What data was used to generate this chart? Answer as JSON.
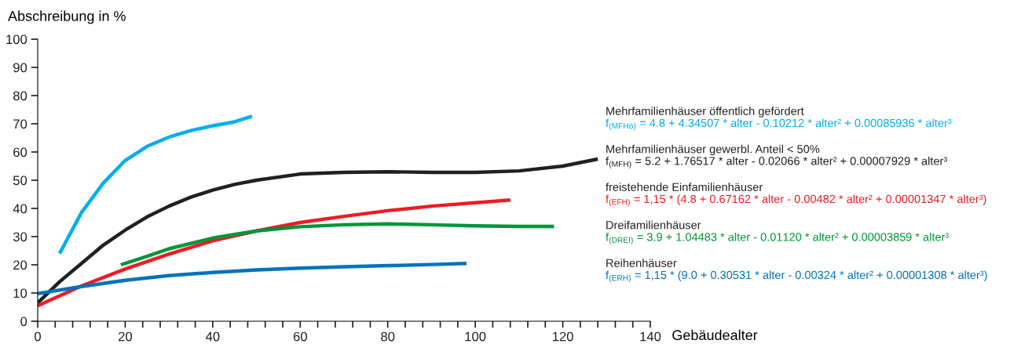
{
  "chart_data": {
    "type": "line",
    "xlabel": "Gebäudealter",
    "ylabel": "Abschreibung in %",
    "xlim": [
      0,
      140
    ],
    "ylim": [
      0,
      100
    ],
    "xticks": [
      0,
      {
        "value": 4,
        "label": null
      },
      {
        "value": 8,
        "label": null
      },
      {
        "value": 12,
        "label": null
      },
      {
        "value": 16,
        "label": null
      },
      20,
      {
        "value": 24,
        "label": null
      },
      {
        "value": 28,
        "label": null
      },
      {
        "value": 32,
        "label": null
      },
      {
        "value": 36,
        "label": null
      },
      40,
      {
        "value": 44,
        "label": null
      },
      {
        "value": 48,
        "label": null
      },
      {
        "value": 52,
        "label": null
      },
      {
        "value": 56,
        "label": null
      },
      60,
      {
        "value": 64,
        "label": null
      },
      {
        "value": 68,
        "label": null
      },
      {
        "value": 72,
        "label": null
      },
      {
        "value": 76,
        "label": null
      },
      80,
      {
        "value": 84,
        "label": null
      },
      {
        "value": 88,
        "label": null
      },
      {
        "value": 92,
        "label": null
      },
      {
        "value": 96,
        "label": null
      },
      100,
      {
        "value": 104,
        "label": null
      },
      {
        "value": 108,
        "label": null
      },
      {
        "value": 112,
        "label": null
      },
      {
        "value": 116,
        "label": null
      },
      120,
      {
        "value": 124,
        "label": null
      },
      {
        "value": 128,
        "label": null
      },
      {
        "value": 132,
        "label": null
      },
      {
        "value": 136,
        "label": null
      },
      140
    ],
    "yticks": [
      0,
      10,
      20,
      30,
      40,
      50,
      60,
      70,
      80,
      90,
      100
    ],
    "grid": false,
    "legend": false,
    "marker": "none",
    "line_style": "solid",
    "series": [
      {
        "name": "Mehrfamilienhäuser öffentlich gefördert",
        "color": "#00aeef",
        "x": [
          5,
          10,
          15,
          20,
          25,
          30,
          35,
          40,
          45,
          49
        ],
        "values": [
          24,
          38.5,
          49,
          57,
          62,
          65.3,
          67.6,
          69.3,
          70.7,
          72.7
        ]
      },
      {
        "name": "Mehrfamilienhäuser gewerbl. Anteil < 50%",
        "color": "#231f20",
        "x": [
          0,
          5,
          10,
          15,
          20,
          25,
          30,
          35,
          40,
          45,
          50,
          60,
          70,
          80,
          90,
          100,
          110,
          120,
          128
        ],
        "values": [
          6.5,
          14,
          20.5,
          27,
          32.3,
          37,
          40.8,
          44,
          46.5,
          48.5,
          50,
          52.2,
          52.8,
          53,
          52.8,
          52.8,
          53.3,
          55,
          57.5
        ]
      },
      {
        "name": "freistehende Einfamilienhäuser",
        "color": "#ed1c24",
        "x": [
          0,
          10,
          20,
          30,
          40,
          50,
          60,
          70,
          80,
          90,
          100,
          108
        ],
        "values": [
          5.5,
          12.5,
          18.5,
          23.8,
          28.5,
          32,
          35,
          37.2,
          39.2,
          40.8,
          42,
          43
        ]
      },
      {
        "name": "Dreifamilienhäuser",
        "color": "#00953a",
        "x": [
          19,
          25,
          30,
          40,
          50,
          60,
          70,
          80,
          90,
          100,
          110,
          118
        ],
        "values": [
          20,
          23,
          25.7,
          29.5,
          32,
          33.5,
          34.2,
          34.5,
          34.2,
          33.8,
          33.6,
          33.6
        ]
      },
      {
        "name": "Reihenhäuser",
        "color": "#0072bc",
        "x": [
          0,
          10,
          20,
          30,
          40,
          50,
          60,
          70,
          80,
          90,
          98
        ],
        "values": [
          9.8,
          12.3,
          14.5,
          16.2,
          17.3,
          18.2,
          18.8,
          19.3,
          19.7,
          20.1,
          20.5
        ]
      }
    ],
    "annotations": [
      "f$_{(MFHö)}$ = 4.8 + 4.34507 * alter - 0.10212 * alter² + 0.00085936 * alter³",
      "f$_{(MFH)}$ = 5.2 + 1.76517 * alter - 0.02066 * alter² + 0.00007929 * alter³",
      "f$_{(EFH)}$ = 1,15 * (4.8 + 0.67162 * alter - 0.00482 * alter² + 0.00001347 * alter³)",
      "f$_{(DREI)}$ = 3.9 + 1.04483 * alter - 0.01120 * alter² + 0.00003859 * alter³",
      "f$_{(ERH)}$ = 1,15 * (9.0 + 0.30531 * alter - 0.00324 * alter² + 0.00001308 * alter³)"
    ]
  }
}
